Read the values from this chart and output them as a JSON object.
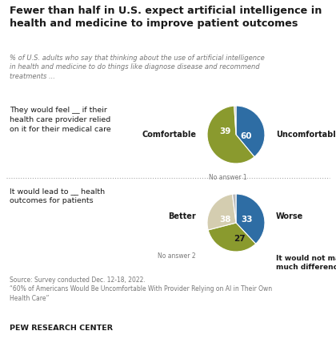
{
  "title": "Fewer than half in U.S. expect artificial intelligence in\nhealth and medicine to improve patient outcomes",
  "subtitle": "% of U.S. adults who say that thinking about the use of artificial intelligence\nin health and medicine to do things like diagnose disease and recommend\ntreatments ...",
  "pie1": {
    "label_text": "They would feel __ if their\nhealth care provider relied\non it for their medical care",
    "values": [
      39,
      60,
      1
    ],
    "colors": [
      "#2E6DA4",
      "#8A9A2E",
      "#BBBBBB"
    ],
    "no_answer_label": "No answer 1"
  },
  "pie2": {
    "label_text": "It would lead to __ health\noutcomes for patients",
    "values": [
      38,
      33,
      27,
      2
    ],
    "colors": [
      "#2E6DA4",
      "#8A9A2E",
      "#D4CDB0",
      "#BBBBBB"
    ],
    "no_answer_label": "No answer 2",
    "bottom_label": "It would not make\nmuch difference"
  },
  "source_text": "Source: Survey conducted Dec. 12-18, 2022.\n“60% of Americans Would Be Uncomfortable With Provider Relying on AI in Their Own\nHealth Care”",
  "footer": "PEW RESEARCH CENTER",
  "bg_color": "#FFFFFF",
  "title_color": "#1A1A1A",
  "subtitle_color": "#777777",
  "text_color": "#1A1A1A",
  "source_color": "#777777",
  "footer_color": "#1A1A1A",
  "separator_color": "#AAAAAA"
}
